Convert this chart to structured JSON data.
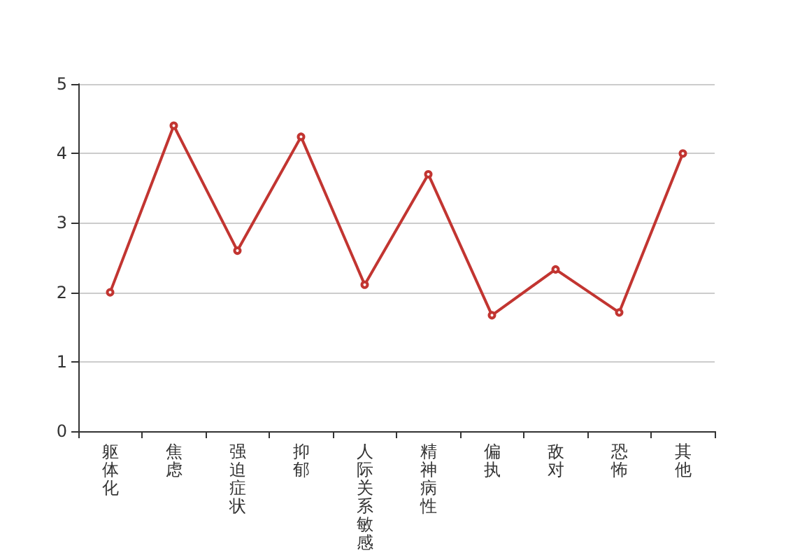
{
  "chart_data": {
    "type": "line",
    "categories": [
      "躯体化",
      "焦虑",
      "强迫症状",
      "抑郁",
      "人际关系敏感",
      "精神病性",
      "偏执",
      "敌对",
      "恐怖",
      "其他"
    ],
    "series": [
      {
        "color": "#c23531",
        "values": [
          2.0,
          4.4,
          2.6,
          4.24,
          2.11,
          3.7,
          1.67,
          2.33,
          1.71,
          4.0
        ]
      }
    ],
    "ylim": [
      0,
      5
    ],
    "yticks": [
      0,
      1,
      2,
      3,
      4,
      5
    ],
    "grid": "y",
    "marker": "circle",
    "line_style": "solid"
  }
}
